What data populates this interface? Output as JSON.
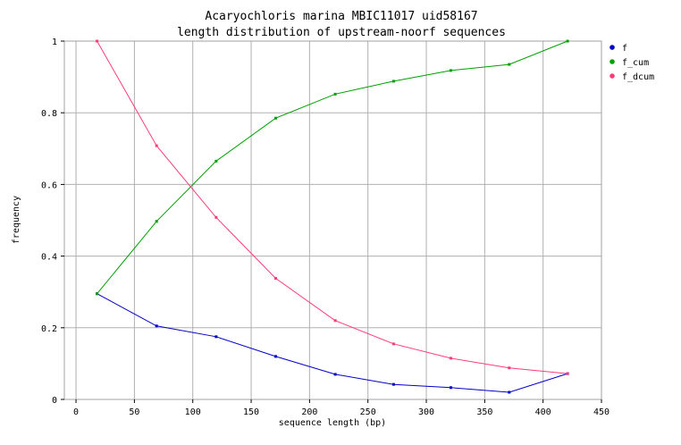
{
  "chart_data": {
    "type": "line",
    "title": "Acaryochloris marina MBIC11017 uid58167",
    "subtitle": "length distribution of upstream-noorf sequences",
    "xlabel": "sequence length (bp)",
    "ylabel": "frequency",
    "xlim": [
      -10,
      450
    ],
    "ylim": [
      0,
      1
    ],
    "xticks": [
      0,
      50,
      100,
      150,
      200,
      250,
      300,
      350,
      400,
      450
    ],
    "yticks": [
      0,
      0.2,
      0.4,
      0.6,
      0.8,
      1
    ],
    "xtick_labels": [
      "0",
      "50",
      "100",
      "150",
      "200",
      "250",
      "300",
      "350",
      "400",
      "450"
    ],
    "ytick_labels": [
      "0",
      "0.2",
      "0.4",
      "0.6",
      "0.8",
      "1"
    ],
    "grid": true,
    "legend_position": "top-right",
    "x": [
      18,
      69,
      120,
      171,
      222,
      272,
      321,
      371,
      421
    ],
    "series": [
      {
        "name": "f",
        "color": "#0000c8",
        "values": [
          0.295,
          0.205,
          0.175,
          0.12,
          0.07,
          0.042,
          0.033,
          0.02,
          0.072
        ]
      },
      {
        "name": "f_cum",
        "color": "#00a000",
        "values": [
          0.295,
          0.497,
          0.665,
          0.785,
          0.852,
          0.888,
          0.918,
          0.935,
          1.0
        ]
      },
      {
        "name": "f_dcum",
        "color": "#ff3c78",
        "values": [
          1.0,
          0.708,
          0.508,
          0.338,
          0.22,
          0.155,
          0.115,
          0.088,
          0.072
        ]
      }
    ]
  }
}
